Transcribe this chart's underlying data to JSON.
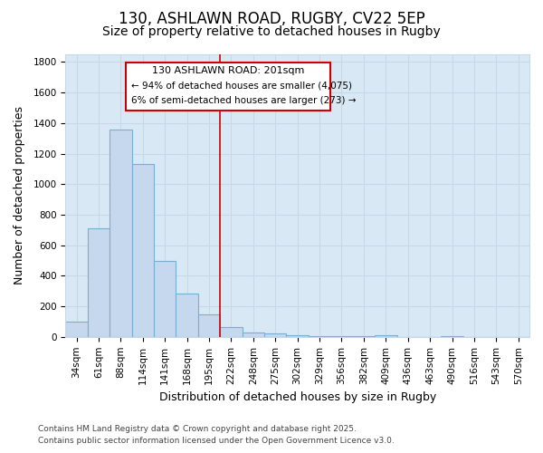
{
  "title": "130, ASHLAWN ROAD, RUGBY, CV22 5EP",
  "subtitle": "Size of property relative to detached houses in Rugby",
  "xlabel": "Distribution of detached houses by size in Rugby",
  "ylabel": "Number of detached properties",
  "footnote1": "Contains HM Land Registry data © Crown copyright and database right 2025.",
  "footnote2": "Contains public sector information licensed under the Open Government Licence v3.0.",
  "annotation_title": "130 ASHLAWN ROAD: 201sqm",
  "annotation_line1": "← 94% of detached houses are smaller (4,075)",
  "annotation_line2": "6% of semi-detached houses are larger (273) →",
  "bar_color": "#c5d8ed",
  "bar_edge_color": "#7aafd4",
  "vline_color": "#cc0000",
  "categories": [
    "34sqm",
    "61sqm",
    "88sqm",
    "114sqm",
    "141sqm",
    "168sqm",
    "195sqm",
    "222sqm",
    "248sqm",
    "275sqm",
    "302sqm",
    "329sqm",
    "356sqm",
    "382sqm",
    "409sqm",
    "436sqm",
    "463sqm",
    "490sqm",
    "516sqm",
    "543sqm",
    "570sqm"
  ],
  "values": [
    100,
    710,
    1360,
    1130,
    500,
    285,
    150,
    65,
    30,
    20,
    8,
    2,
    2,
    2,
    8,
    0,
    0,
    5,
    0,
    0,
    0
  ],
  "vline_category": "195sqm",
  "ylim": [
    0,
    1850
  ],
  "yticks": [
    0,
    200,
    400,
    600,
    800,
    1000,
    1200,
    1400,
    1600,
    1800
  ],
  "grid_color": "#c8d8e8",
  "plot_bg_color": "#d8e8f5",
  "fig_bg_color": "#ffffff",
  "box_color": "#ffffff",
  "title_fontsize": 12,
  "subtitle_fontsize": 10,
  "tick_fontsize": 7.5,
  "label_fontsize": 9,
  "footnote_fontsize": 6.5
}
